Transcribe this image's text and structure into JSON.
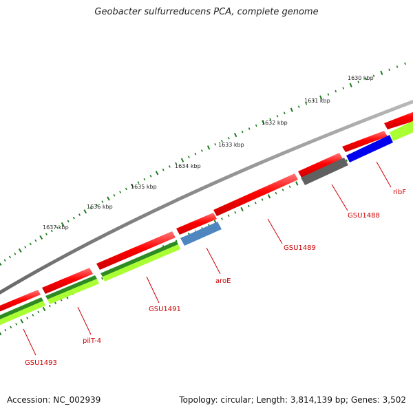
{
  "title": "Geobacter sulfurreducens PCA, complete genome",
  "accession": "Accession: NC_002939",
  "summary": "Topology: circular; Length: 3,814,139 bp; Genes: 3,502",
  "ticks": [
    "1630 kbp",
    "1631 kbp",
    "1632 kbp",
    "1633 kbp",
    "1634 kbp",
    "1635 kbp",
    "1636 kbp",
    "1637 kbp"
  ],
  "gene_labels": [
    "ribF",
    "GSU1488",
    "GSU1489",
    "aroE",
    "GSU1491",
    "pilT-4",
    "GSU1493"
  ],
  "colors": {
    "backbone": "#808080",
    "gene_red": "#ff0000",
    "gene_blue": "#0000ee",
    "gene_steelblue": "#4f86c0",
    "gene_gray": "#606060",
    "green_dark": "#2e8b22",
    "green_light": "#aaff33",
    "tick_green": "#1a7a1a",
    "label_red": "#cc0000"
  }
}
